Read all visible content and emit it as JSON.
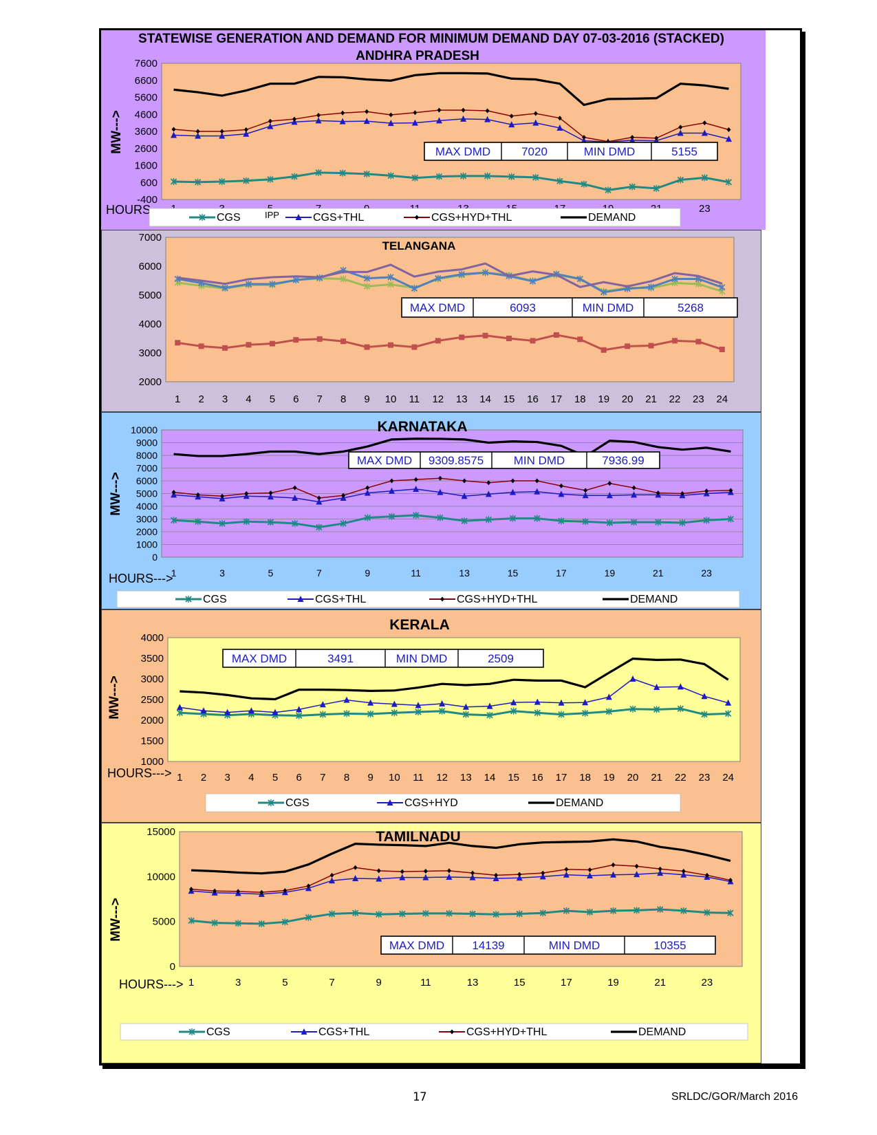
{
  "page": {
    "title": "STATEWISE GENERATION AND DEMAND FOR MINIMUM DEMAND DAY 07-03-2016 (STACKED)",
    "page_number": "17",
    "reference": "SRLDC/GOR/March 2016"
  },
  "colors": {
    "cgs": "#1f8a85",
    "thl": "#1c1cc0",
    "hyd": "#8b0000",
    "demand": "#000000",
    "tel_ipp": "#c0504d",
    "tel_s1": "#9bbb59",
    "tel_s2": "#4f81bd",
    "tel_s3": "#8064a2"
  },
  "chart_data": [
    {
      "type": "line",
      "title": "ANDHRA PRADESH",
      "ylabel": "MW--->",
      "xlabel": "HOURS",
      "x": [
        1,
        2,
        3,
        4,
        5,
        6,
        7,
        8,
        9,
        10,
        11,
        12,
        13,
        14,
        15,
        16,
        17,
        18,
        19,
        20,
        21,
        22,
        23,
        24
      ],
      "x_tick_labels": [
        "1",
        "3",
        "5",
        "7",
        "9",
        "11",
        "13",
        "15",
        "17",
        "19",
        "21",
        "23"
      ],
      "ylim": [
        -400,
        7600
      ],
      "y_ticks": [
        "7600",
        "6600",
        "5600",
        "4600",
        "3600",
        "2600",
        "1600",
        "600",
        "-400"
      ],
      "annotation_label": "IPP",
      "stats": {
        "max_label": "MAX DMD",
        "max_value": "7020",
        "min_label": "MIN DMD",
        "min_value": "5155"
      },
      "series": [
        {
          "name": "CGS",
          "values": [
            650,
            620,
            650,
            700,
            780,
            950,
            1180,
            1150,
            1100,
            1000,
            870,
            950,
            980,
            980,
            940,
            900,
            680,
            500,
            150,
            350,
            250,
            750,
            880,
            620
          ]
        },
        {
          "name": "CGS+THL",
          "values": [
            3380,
            3330,
            3330,
            3450,
            3900,
            4150,
            4230,
            4180,
            4200,
            4080,
            4100,
            4230,
            4330,
            4300,
            4000,
            4100,
            3800,
            3050,
            2980,
            3080,
            3050,
            3500,
            3500,
            3150
          ]
        },
        {
          "name": "CGS+HYD+THL",
          "values": [
            3720,
            3600,
            3600,
            3700,
            4200,
            4320,
            4550,
            4680,
            4760,
            4570,
            4700,
            4850,
            4850,
            4810,
            4500,
            4650,
            4380,
            3250,
            3000,
            3250,
            3200,
            3850,
            4100,
            3700
          ]
        },
        {
          "name": "DEMAND",
          "values": [
            6050,
            5900,
            5700,
            6000,
            6400,
            6400,
            6800,
            6780,
            6650,
            6580,
            6900,
            7020,
            7020,
            7000,
            6700,
            6650,
            6400,
            5155,
            5500,
            5520,
            5550,
            6400,
            6300,
            6100
          ]
        }
      ]
    },
    {
      "type": "line",
      "title": "TELANGANA",
      "x": [
        1,
        2,
        3,
        4,
        5,
        6,
        7,
        8,
        9,
        10,
        11,
        12,
        13,
        14,
        15,
        16,
        17,
        18,
        19,
        20,
        21,
        22,
        23,
        24
      ],
      "x_tick_labels": [
        "1",
        "2",
        "3",
        "4",
        "5",
        "6",
        "7",
        "8",
        "9",
        "10",
        "11",
        "12",
        "13",
        "14",
        "15",
        "16",
        "17",
        "18",
        "19",
        "20",
        "21",
        "22",
        "23",
        "24"
      ],
      "ylim": [
        2000,
        7000
      ],
      "y_ticks": [
        "7000",
        "6000",
        "5000",
        "4000",
        "3000",
        "2000"
      ],
      "stats": {
        "max_label": "MAX DMD",
        "max_value": "6093",
        "min_label": "MIN DMD",
        "min_value": "5268"
      },
      "series": [
        {
          "values": [
            3350,
            3230,
            3170,
            3280,
            3320,
            3450,
            3480,
            3400,
            3200,
            3270,
            3200,
            3420,
            3540,
            3600,
            3500,
            3420,
            3620,
            3470,
            3100,
            3230,
            3250,
            3420,
            3390,
            3120
          ]
        },
        {
          "values": [
            5430,
            5320,
            5230,
            5350,
            5350,
            5520,
            5580,
            5560,
            5300,
            5370,
            5250,
            5560,
            5690,
            5780,
            5690,
            5490,
            5700,
            5560,
            5130,
            5250,
            5240,
            5420,
            5380,
            5130
          ]
        },
        {
          "values": [
            5560,
            5420,
            5250,
            5380,
            5380,
            5520,
            5600,
            5860,
            5580,
            5620,
            5230,
            5580,
            5720,
            5780,
            5660,
            5480,
            5730,
            5560,
            5100,
            5220,
            5280,
            5560,
            5560,
            5270
          ]
        },
        {
          "values": [
            5600,
            5500,
            5390,
            5550,
            5620,
            5650,
            5620,
            5800,
            5800,
            6050,
            5640,
            5810,
            5890,
            6093,
            5660,
            5820,
            5700,
            5280,
            5450,
            5300,
            5480,
            5760,
            5660,
            5400
          ]
        }
      ]
    },
    {
      "type": "line",
      "title": "KARNATAKA",
      "ylabel": "MW--->",
      "xlabel": "HOURS--->",
      "x": [
        1,
        2,
        3,
        4,
        5,
        6,
        7,
        8,
        9,
        10,
        11,
        12,
        13,
        14,
        15,
        16,
        17,
        18,
        19,
        20,
        21,
        22,
        23,
        24
      ],
      "x_tick_labels": [
        "1",
        "3",
        "5",
        "7",
        "9",
        "11",
        "13",
        "15",
        "17",
        "19",
        "21",
        "23"
      ],
      "ylim": [
        0,
        10000
      ],
      "y_ticks": [
        "10000",
        "9000",
        "8000",
        "7000",
        "6000",
        "5000",
        "4000",
        "3000",
        "2000",
        "1000",
        "0"
      ],
      "stats": {
        "max_label": "MAX DMD",
        "max_value": "9309.8575",
        "min_label": "MIN DMD",
        "min_value": "7936.99"
      },
      "series": [
        {
          "name": "CGS",
          "values": [
            2900,
            2800,
            2650,
            2800,
            2750,
            2650,
            2350,
            2650,
            3100,
            3200,
            3300,
            3100,
            2850,
            2950,
            3050,
            3050,
            2850,
            2800,
            2700,
            2750,
            2750,
            2700,
            2900,
            3000
          ]
        },
        {
          "name": "CGS+THL",
          "values": [
            4900,
            4750,
            4600,
            4800,
            4750,
            4650,
            4350,
            4650,
            5050,
            5200,
            5350,
            5100,
            4800,
            4950,
            5100,
            5150,
            4950,
            4850,
            4850,
            4900,
            4900,
            4850,
            5000,
            5100
          ]
        },
        {
          "name": "CGS+HYD+THL",
          "values": [
            5100,
            4900,
            4800,
            5000,
            5050,
            5450,
            4650,
            4850,
            5450,
            6000,
            6100,
            6200,
            6000,
            5850,
            6000,
            6000,
            5600,
            5250,
            5800,
            5450,
            5050,
            5000,
            5200,
            5250
          ]
        },
        {
          "name": "DEMAND",
          "values": [
            8100,
            7950,
            7950,
            8100,
            8300,
            8300,
            8100,
            8300,
            8700,
            9250,
            9309.8575,
            9300,
            9250,
            9000,
            9100,
            9050,
            8750,
            7936.99,
            9150,
            9050,
            8650,
            8450,
            8600,
            8300
          ]
        }
      ]
    },
    {
      "type": "line",
      "title": "KERALA",
      "ylabel": "MW--->",
      "xlabel": "HOURS--->",
      "x": [
        1,
        2,
        3,
        4,
        5,
        6,
        7,
        8,
        9,
        10,
        11,
        12,
        13,
        14,
        15,
        16,
        17,
        18,
        19,
        20,
        21,
        22,
        23,
        24
      ],
      "x_tick_labels": [
        "1",
        "2",
        "3",
        "4",
        "5",
        "6",
        "7",
        "8",
        "9",
        "10",
        "11",
        "12",
        "13",
        "14",
        "15",
        "16",
        "17",
        "18",
        "19",
        "20",
        "21",
        "22",
        "23",
        "24"
      ],
      "ylim": [
        1000,
        4000
      ],
      "y_ticks": [
        "4000",
        "3500",
        "3000",
        "2500",
        "2000",
        "1500",
        "1000"
      ],
      "stats": {
        "max_label": "MAX DMD",
        "max_value": "3491",
        "min_label": "MIN DMD",
        "min_value": "2509"
      },
      "series": [
        {
          "name": "CGS",
          "values": [
            2180,
            2150,
            2120,
            2150,
            2120,
            2110,
            2140,
            2160,
            2150,
            2180,
            2200,
            2220,
            2140,
            2120,
            2220,
            2180,
            2140,
            2170,
            2210,
            2270,
            2260,
            2280,
            2140,
            2160
          ]
        },
        {
          "name": "CGS+HYD",
          "values": [
            2310,
            2230,
            2190,
            2230,
            2190,
            2260,
            2380,
            2490,
            2420,
            2390,
            2360,
            2400,
            2320,
            2340,
            2430,
            2440,
            2420,
            2430,
            2560,
            3000,
            2800,
            2810,
            2580,
            2420
          ]
        },
        {
          "name": "DEMAND",
          "values": [
            2700,
            2670,
            2610,
            2530,
            2509,
            2740,
            2740,
            2730,
            2710,
            2720,
            2790,
            2880,
            2850,
            2880,
            2980,
            2960,
            2960,
            2800,
            3150,
            3491,
            3460,
            3470,
            3360,
            2980
          ]
        }
      ]
    },
    {
      "type": "line",
      "title": "TAMILNADU",
      "ylabel": "MW--->",
      "xlabel": "HOURS--->",
      "x": [
        1,
        2,
        3,
        4,
        5,
        6,
        7,
        8,
        9,
        10,
        11,
        12,
        13,
        14,
        15,
        16,
        17,
        18,
        19,
        20,
        21,
        22,
        23,
        24
      ],
      "x_tick_labels": [
        "1",
        "3",
        "5",
        "7",
        "9",
        "11",
        "13",
        "15",
        "17",
        "19",
        "21",
        "23"
      ],
      "ylim": [
        0,
        15000
      ],
      "y_ticks": [
        "15000",
        "10000",
        "5000",
        "0"
      ],
      "stats": {
        "max_label": "MAX DMD",
        "max_value": "14139",
        "min_label": "MIN DMD",
        "min_value": "10355"
      },
      "series": [
        {
          "name": "CGS",
          "values": [
            5100,
            4850,
            4800,
            4750,
            4950,
            5450,
            5850,
            5950,
            5800,
            5850,
            5900,
            5900,
            5850,
            5800,
            5850,
            5950,
            6200,
            6050,
            6200,
            6250,
            6350,
            6200,
            6000,
            5950
          ]
        },
        {
          "name": "CGS+THL",
          "values": [
            8400,
            8200,
            8150,
            8050,
            8250,
            8700,
            9550,
            9800,
            9750,
            9900,
            9900,
            9950,
            9900,
            9800,
            9850,
            10000,
            10200,
            10100,
            10200,
            10250,
            10400,
            10200,
            9950,
            9450
          ]
        },
        {
          "name": "CGS+HYD+THL",
          "values": [
            8600,
            8400,
            8350,
            8250,
            8450,
            8950,
            10150,
            11000,
            10650,
            10550,
            10600,
            10650,
            10400,
            10150,
            10250,
            10400,
            10800,
            10750,
            11300,
            11150,
            10850,
            10600,
            10150,
            9600
          ]
        },
        {
          "name": "DEMAND",
          "values": [
            10700,
            10600,
            10450,
            10355,
            10550,
            11350,
            12550,
            13650,
            13550,
            13500,
            13400,
            13750,
            13400,
            13200,
            13600,
            13800,
            13850,
            13900,
            14139,
            13900,
            13300,
            12950,
            12400,
            11750
          ]
        }
      ]
    }
  ]
}
